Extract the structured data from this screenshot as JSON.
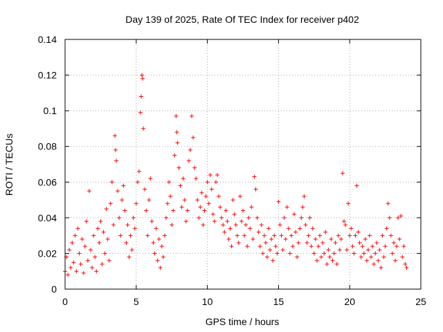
{
  "chart_data": {
    "type": "scatter",
    "title": "Day 139 of 2025, Rate Of TEC Index for receiver p402",
    "xlabel": "GPS time / hours",
    "ylabel": "ROTI / TECUs",
    "xlim": [
      0,
      25
    ],
    "ylim": [
      0,
      0.14
    ],
    "xticks": [
      0,
      5,
      10,
      15,
      20,
      25
    ],
    "yticks": [
      0,
      0.02,
      0.04,
      0.06,
      0.08,
      0.1,
      0.12,
      0.14
    ],
    "xtick_labels": [
      "0",
      "5",
      "10",
      "15",
      "20",
      "25"
    ],
    "ytick_labels": [
      "0",
      "0.02",
      "0.04",
      "0.06",
      "0.08",
      "0.1",
      "0.12",
      "0.14"
    ],
    "grid": true,
    "marker": "+",
    "color": "#ff0000",
    "series": [
      {
        "points": [
          [
            0.0,
            0.01
          ],
          [
            0.1,
            0.018
          ],
          [
            0.2,
            0.008
          ],
          [
            0.3,
            0.022
          ],
          [
            0.4,
            0.012
          ],
          [
            0.5,
            0.026
          ],
          [
            0.6,
            0.015
          ],
          [
            0.7,
            0.03
          ],
          [
            0.8,
            0.01
          ],
          [
            0.9,
            0.034
          ],
          [
            1.0,
            0.02
          ],
          [
            1.1,
            0.014
          ],
          [
            1.2,
            0.028
          ],
          [
            1.3,
            0.009
          ],
          [
            1.4,
            0.024
          ],
          [
            1.5,
            0.038
          ],
          [
            1.6,
            0.016
          ],
          [
            1.7,
            0.055
          ],
          [
            1.8,
            0.022
          ],
          [
            1.9,
            0.012
          ],
          [
            2.0,
            0.03
          ],
          [
            2.1,
            0.018
          ],
          [
            2.2,
            0.01
          ],
          [
            2.3,
            0.034
          ],
          [
            2.4,
            0.026
          ],
          [
            2.5,
            0.038
          ],
          [
            2.6,
            0.014
          ],
          [
            2.7,
            0.032
          ],
          [
            2.8,
            0.02
          ],
          [
            2.9,
            0.045
          ],
          [
            3.0,
            0.028
          ],
          [
            3.1,
            0.016
          ],
          [
            3.2,
            0.048
          ],
          [
            3.3,
            0.06
          ],
          [
            3.4,
            0.036
          ],
          [
            3.5,
            0.086
          ],
          [
            3.55,
            0.078
          ],
          [
            3.6,
            0.072
          ],
          [
            3.7,
            0.055
          ],
          [
            3.8,
            0.04
          ],
          [
            3.9,
            0.03
          ],
          [
            4.0,
            0.05
          ],
          [
            4.1,
            0.058
          ],
          [
            4.2,
            0.044
          ],
          [
            4.3,
            0.026
          ],
          [
            4.4,
            0.036
          ],
          [
            4.5,
            0.018
          ],
          [
            4.6,
            0.03
          ],
          [
            4.7,
            0.022
          ],
          [
            4.8,
            0.04
          ],
          [
            4.9,
            0.034
          ],
          [
            5.0,
            0.048
          ],
          [
            5.1,
            0.06
          ],
          [
            5.2,
            0.066
          ],
          [
            5.3,
            0.099
          ],
          [
            5.35,
            0.108
          ],
          [
            5.4,
            0.12
          ],
          [
            5.45,
            0.118
          ],
          [
            5.5,
            0.09
          ],
          [
            5.6,
            0.056
          ],
          [
            5.7,
            0.044
          ],
          [
            5.8,
            0.03
          ],
          [
            5.9,
            0.05
          ],
          [
            6.0,
            0.062
          ],
          [
            6.1,
            0.038
          ],
          [
            6.2,
            0.026
          ],
          [
            6.3,
            0.02
          ],
          [
            6.4,
            0.034
          ],
          [
            6.5,
            0.016
          ],
          [
            6.6,
            0.028
          ],
          [
            6.7,
            0.012
          ],
          [
            6.8,
            0.024
          ],
          [
            6.9,
            0.018
          ],
          [
            7.0,
            0.03
          ],
          [
            7.1,
            0.04
          ],
          [
            7.2,
            0.048
          ],
          [
            7.3,
            0.06
          ],
          [
            7.4,
            0.052
          ],
          [
            7.5,
            0.036
          ],
          [
            7.6,
            0.044
          ],
          [
            7.7,
            0.075
          ],
          [
            7.8,
            0.097
          ],
          [
            7.85,
            0.088
          ],
          [
            7.9,
            0.082
          ],
          [
            8.0,
            0.068
          ],
          [
            8.1,
            0.058
          ],
          [
            8.2,
            0.046
          ],
          [
            8.3,
            0.062
          ],
          [
            8.4,
            0.05
          ],
          [
            8.5,
            0.038
          ],
          [
            8.6,
            0.044
          ],
          [
            8.7,
            0.072
          ],
          [
            8.8,
            0.078
          ],
          [
            8.9,
            0.097
          ],
          [
            9.0,
            0.085
          ],
          [
            9.1,
            0.068
          ],
          [
            9.2,
            0.062
          ],
          [
            9.3,
            0.05
          ],
          [
            9.4,
            0.04
          ],
          [
            9.5,
            0.046
          ],
          [
            9.6,
            0.054
          ],
          [
            9.7,
            0.036
          ],
          [
            9.8,
            0.044
          ],
          [
            9.9,
            0.052
          ],
          [
            10.0,
            0.06
          ],
          [
            10.1,
            0.048
          ],
          [
            10.2,
            0.064
          ],
          [
            10.3,
            0.056
          ],
          [
            10.4,
            0.042
          ],
          [
            10.5,
            0.038
          ],
          [
            10.6,
            0.06
          ],
          [
            10.7,
            0.064
          ],
          [
            10.8,
            0.052
          ],
          [
            10.9,
            0.046
          ],
          [
            11.0,
            0.04
          ],
          [
            11.1,
            0.036
          ],
          [
            11.2,
            0.032
          ],
          [
            11.3,
            0.044
          ],
          [
            11.4,
            0.038
          ],
          [
            11.5,
            0.028
          ],
          [
            11.6,
            0.034
          ],
          [
            11.7,
            0.024
          ],
          [
            11.8,
            0.05
          ],
          [
            11.9,
            0.042
          ],
          [
            12.0,
            0.036
          ],
          [
            12.1,
            0.03
          ],
          [
            12.2,
            0.026
          ],
          [
            12.3,
            0.052
          ],
          [
            12.4,
            0.038
          ],
          [
            12.5,
            0.044
          ],
          [
            12.6,
            0.03
          ],
          [
            12.7,
            0.036
          ],
          [
            12.8,
            0.024
          ],
          [
            12.9,
            0.04
          ],
          [
            13.0,
            0.034
          ],
          [
            13.1,
            0.046
          ],
          [
            13.2,
            0.028
          ],
          [
            13.3,
            0.063
          ],
          [
            13.4,
            0.056
          ],
          [
            13.5,
            0.04
          ],
          [
            13.6,
            0.032
          ],
          [
            13.7,
            0.024
          ],
          [
            13.8,
            0.036
          ],
          [
            13.9,
            0.02
          ],
          [
            14.0,
            0.03
          ],
          [
            14.1,
            0.026
          ],
          [
            14.2,
            0.018
          ],
          [
            14.3,
            0.034
          ],
          [
            14.4,
            0.022
          ],
          [
            14.5,
            0.028
          ],
          [
            14.6,
            0.016
          ],
          [
            14.7,
            0.03
          ],
          [
            14.8,
            0.024
          ],
          [
            14.9,
            0.02
          ],
          [
            15.0,
            0.049
          ],
          [
            15.1,
            0.036
          ],
          [
            15.2,
            0.03
          ],
          [
            15.3,
            0.022
          ],
          [
            15.4,
            0.04
          ],
          [
            15.5,
            0.028
          ],
          [
            15.6,
            0.046
          ],
          [
            15.7,
            0.034
          ],
          [
            15.8,
            0.02
          ],
          [
            15.9,
            0.03
          ],
          [
            16.0,
            0.024
          ],
          [
            16.1,
            0.042
          ],
          [
            16.2,
            0.032
          ],
          [
            16.3,
            0.018
          ],
          [
            16.4,
            0.026
          ],
          [
            16.5,
            0.034
          ],
          [
            16.6,
            0.04
          ],
          [
            16.7,
            0.046
          ],
          [
            16.8,
            0.052
          ],
          [
            16.9,
            0.036
          ],
          [
            17.0,
            0.026
          ],
          [
            17.1,
            0.03
          ],
          [
            17.2,
            0.04
          ],
          [
            17.3,
            0.024
          ],
          [
            17.4,
            0.034
          ],
          [
            17.5,
            0.02
          ],
          [
            17.6,
            0.028
          ],
          [
            17.7,
            0.016
          ],
          [
            17.8,
            0.024
          ],
          [
            17.9,
            0.03
          ],
          [
            18.0,
            0.018
          ],
          [
            18.1,
            0.026
          ],
          [
            18.2,
            0.02
          ],
          [
            18.3,
            0.032
          ],
          [
            18.4,
            0.014
          ],
          [
            18.5,
            0.022
          ],
          [
            18.6,
            0.018
          ],
          [
            18.7,
            0.028
          ],
          [
            18.8,
            0.016
          ],
          [
            18.9,
            0.02
          ],
          [
            19.0,
            0.026
          ],
          [
            19.1,
            0.014
          ],
          [
            19.2,
            0.03
          ],
          [
            19.3,
            0.022
          ],
          [
            19.4,
            0.028
          ],
          [
            19.5,
            0.065
          ],
          [
            19.6,
            0.038
          ],
          [
            19.7,
            0.036
          ],
          [
            19.8,
            0.022
          ],
          [
            19.9,
            0.048
          ],
          [
            20.0,
            0.03
          ],
          [
            20.1,
            0.034
          ],
          [
            20.2,
            0.024
          ],
          [
            20.3,
            0.02
          ],
          [
            20.4,
            0.03
          ],
          [
            20.5,
            0.058
          ],
          [
            20.6,
            0.032
          ],
          [
            20.7,
            0.026
          ],
          [
            20.8,
            0.018
          ],
          [
            20.9,
            0.024
          ],
          [
            21.0,
            0.02
          ],
          [
            21.1,
            0.028
          ],
          [
            21.2,
            0.016
          ],
          [
            21.3,
            0.022
          ],
          [
            21.4,
            0.03
          ],
          [
            21.5,
            0.018
          ],
          [
            21.6,
            0.024
          ],
          [
            21.7,
            0.014
          ],
          [
            21.8,
            0.02
          ],
          [
            21.9,
            0.026
          ],
          [
            22.0,
            0.016
          ],
          [
            22.1,
            0.022
          ],
          [
            22.2,
            0.012
          ],
          [
            22.3,
            0.03
          ],
          [
            22.4,
            0.018
          ],
          [
            22.5,
            0.024
          ],
          [
            22.6,
            0.034
          ],
          [
            22.7,
            0.048
          ],
          [
            22.8,
            0.04
          ],
          [
            22.9,
            0.03
          ],
          [
            23.0,
            0.02
          ],
          [
            23.1,
            0.026
          ],
          [
            23.2,
            0.016
          ],
          [
            23.3,
            0.024
          ],
          [
            23.4,
            0.04
          ],
          [
            23.5,
            0.028
          ],
          [
            23.6,
            0.041
          ],
          [
            23.7,
            0.018
          ],
          [
            23.8,
            0.024
          ],
          [
            23.9,
            0.014
          ],
          [
            24.0,
            0.012
          ]
        ]
      }
    ]
  }
}
